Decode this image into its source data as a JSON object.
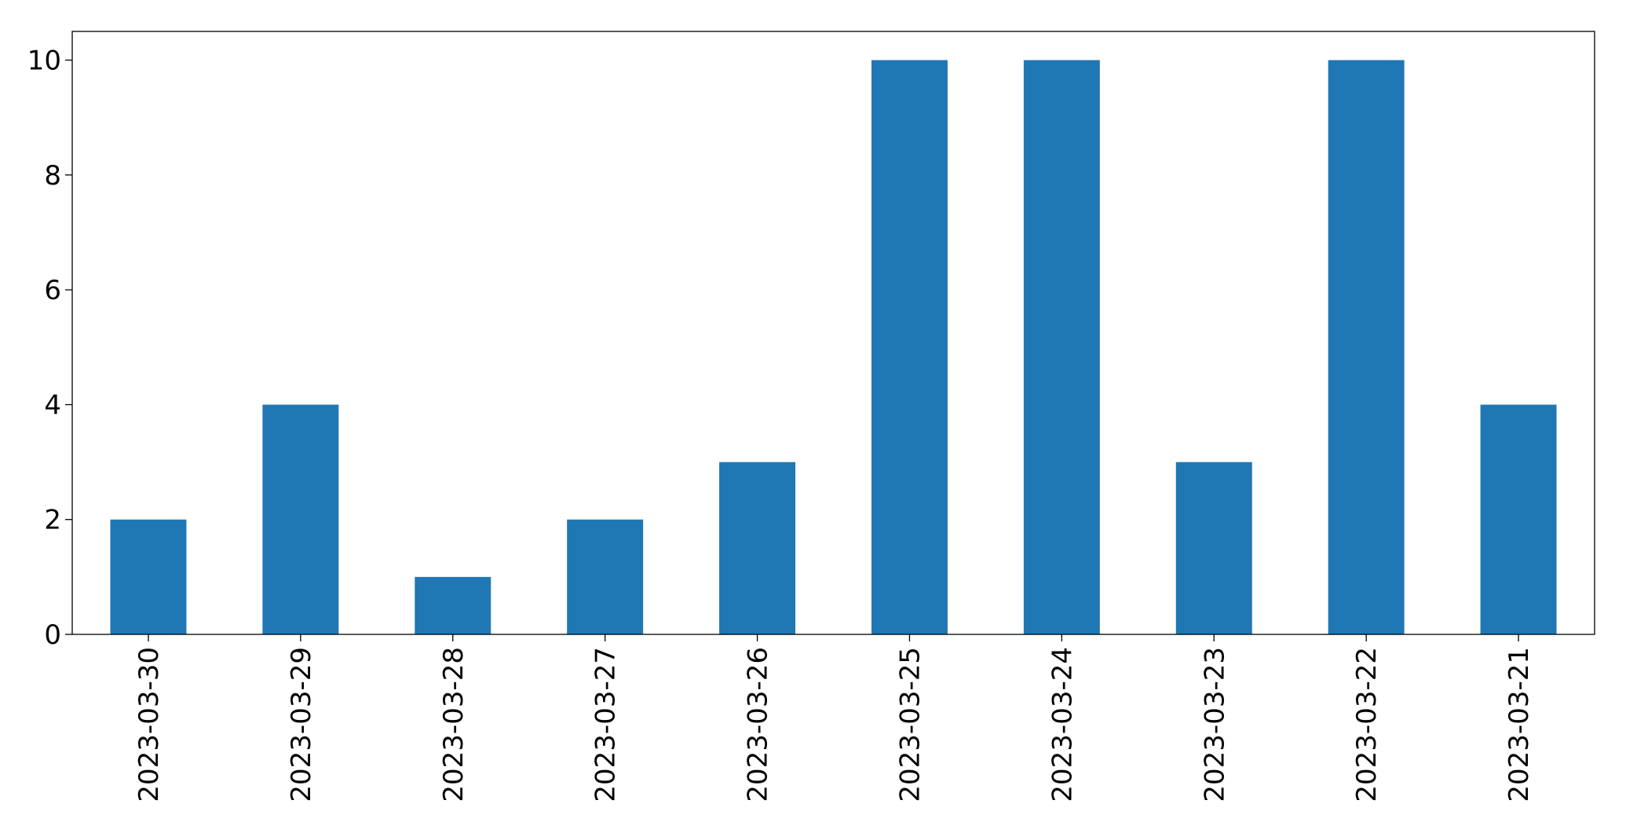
{
  "chart_data": {
    "type": "bar",
    "categories": [
      "2023-03-30",
      "2023-03-29",
      "2023-03-28",
      "2023-03-27",
      "2023-03-26",
      "2023-03-25",
      "2023-03-24",
      "2023-03-23",
      "2023-03-22",
      "2023-03-21"
    ],
    "values": [
      2,
      4,
      1,
      2,
      3,
      10,
      10,
      3,
      10,
      4
    ],
    "color": "#1f77b4",
    "ylim": [
      0,
      10.5
    ],
    "yticks": [
      0,
      2,
      4,
      6,
      8,
      10
    ],
    "grid": false
  }
}
